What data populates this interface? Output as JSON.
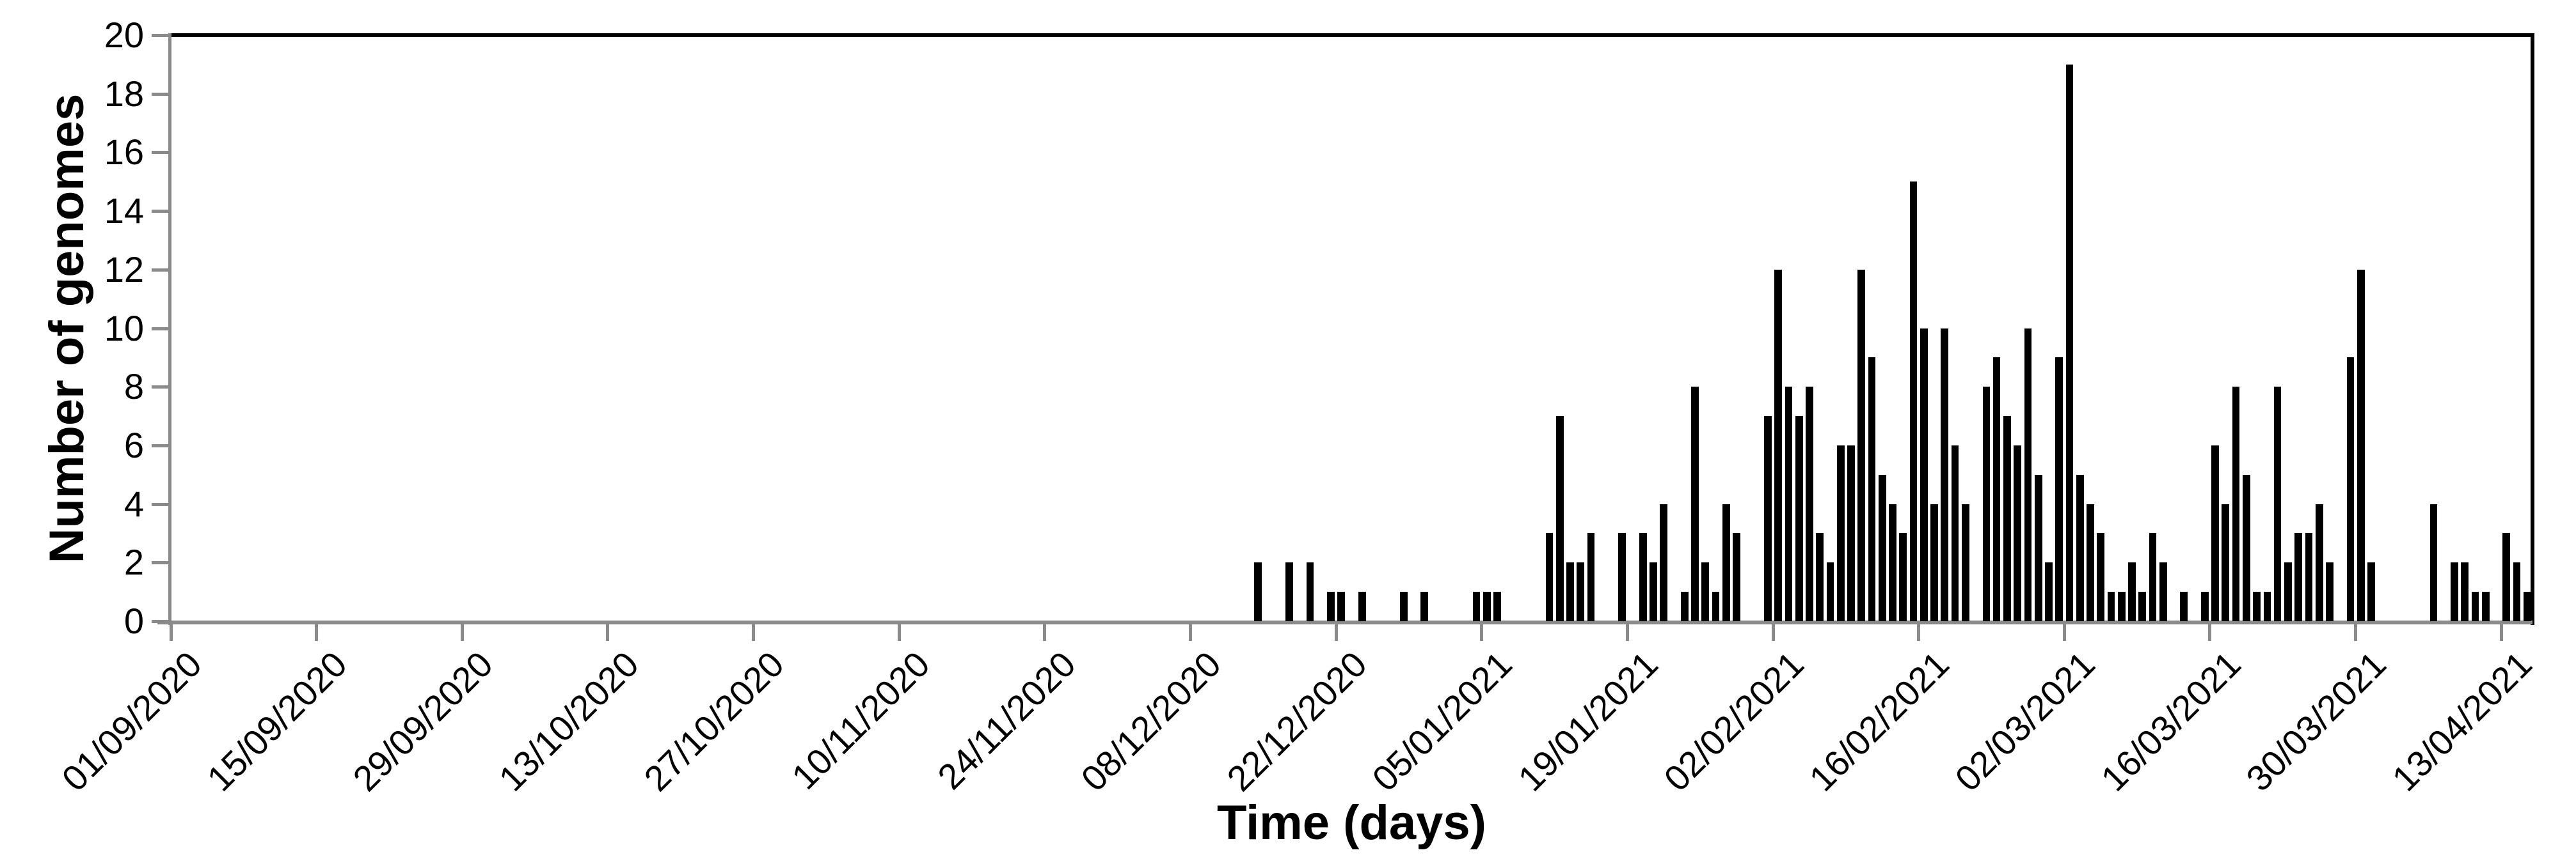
{
  "chart_data": {
    "type": "bar",
    "title": "",
    "xlabel": "Time (days)",
    "ylabel": "Number of genomes",
    "ylim": [
      0,
      20
    ],
    "y_tick_step": 2,
    "y_tick_values": [
      0,
      2,
      4,
      6,
      8,
      10,
      12,
      14,
      16,
      18,
      20
    ],
    "grid": "off",
    "legend": "none",
    "bar_color": "#000000",
    "axis_color": "#8a8a8a",
    "frame_color": "#000000",
    "n_slots": 227,
    "x_start_date": "01/09/2020",
    "x_end_date": "15/04/2021",
    "x_ticks": [
      {
        "day": 0,
        "label": "01/09/2020"
      },
      {
        "day": 14,
        "label": "15/09/2020"
      },
      {
        "day": 28,
        "label": "29/09/2020"
      },
      {
        "day": 42,
        "label": "13/10/2020"
      },
      {
        "day": 56,
        "label": "27/10/2020"
      },
      {
        "day": 70,
        "label": "10/11/2020"
      },
      {
        "day": 84,
        "label": "24/11/2020"
      },
      {
        "day": 98,
        "label": "08/12/2020"
      },
      {
        "day": 112,
        "label": "22/12/2020"
      },
      {
        "day": 126,
        "label": "05/01/2021"
      },
      {
        "day": 140,
        "label": "19/01/2021"
      },
      {
        "day": 154,
        "label": "02/02/2021"
      },
      {
        "day": 168,
        "label": "16/02/2021"
      },
      {
        "day": 182,
        "label": "02/03/2021"
      },
      {
        "day": 196,
        "label": "16/03/2021"
      },
      {
        "day": 210,
        "label": "30/03/2021"
      },
      {
        "day": 224,
        "label": "13/04/2021"
      }
    ],
    "points": [
      {
        "day": 104,
        "date": "14/12/2020",
        "value": 2
      },
      {
        "day": 107,
        "date": "17/12/2020",
        "value": 2
      },
      {
        "day": 109,
        "date": "19/12/2020",
        "value": 2
      },
      {
        "day": 111,
        "date": "21/12/2020",
        "value": 1
      },
      {
        "day": 112,
        "date": "22/12/2020",
        "value": 1
      },
      {
        "day": 114,
        "date": "24/12/2020",
        "value": 1
      },
      {
        "day": 118,
        "date": "28/12/2020",
        "value": 1
      },
      {
        "day": 120,
        "date": "30/12/2020",
        "value": 1
      },
      {
        "day": 125,
        "date": "04/01/2021",
        "value": 1
      },
      {
        "day": 126,
        "date": "05/01/2021",
        "value": 1
      },
      {
        "day": 127,
        "date": "06/01/2021",
        "value": 1
      },
      {
        "day": 132,
        "date": "11/01/2021",
        "value": 3
      },
      {
        "day": 133,
        "date": "12/01/2021",
        "value": 7
      },
      {
        "day": 134,
        "date": "13/01/2021",
        "value": 2
      },
      {
        "day": 135,
        "date": "14/01/2021",
        "value": 2
      },
      {
        "day": 136,
        "date": "15/01/2021",
        "value": 3
      },
      {
        "day": 139,
        "date": "18/01/2021",
        "value": 3
      },
      {
        "day": 141,
        "date": "20/01/2021",
        "value": 3
      },
      {
        "day": 142,
        "date": "21/01/2021",
        "value": 2
      },
      {
        "day": 143,
        "date": "22/01/2021",
        "value": 4
      },
      {
        "day": 145,
        "date": "24/01/2021",
        "value": 1
      },
      {
        "day": 146,
        "date": "25/01/2021",
        "value": 8
      },
      {
        "day": 147,
        "date": "26/01/2021",
        "value": 2
      },
      {
        "day": 148,
        "date": "27/01/2021",
        "value": 1
      },
      {
        "day": 149,
        "date": "28/01/2021",
        "value": 4
      },
      {
        "day": 150,
        "date": "29/01/2021",
        "value": 3
      },
      {
        "day": 153,
        "date": "01/02/2021",
        "value": 7
      },
      {
        "day": 154,
        "date": "02/02/2021",
        "value": 12
      },
      {
        "day": 155,
        "date": "03/02/2021",
        "value": 8
      },
      {
        "day": 156,
        "date": "04/02/2021",
        "value": 7
      },
      {
        "day": 157,
        "date": "05/02/2021",
        "value": 8
      },
      {
        "day": 158,
        "date": "06/02/2021",
        "value": 3
      },
      {
        "day": 159,
        "date": "07/02/2021",
        "value": 2
      },
      {
        "day": 160,
        "date": "08/02/2021",
        "value": 6
      },
      {
        "day": 161,
        "date": "09/02/2021",
        "value": 6
      },
      {
        "day": 162,
        "date": "10/02/2021",
        "value": 12
      },
      {
        "day": 163,
        "date": "11/02/2021",
        "value": 9
      },
      {
        "day": 164,
        "date": "12/02/2021",
        "value": 5
      },
      {
        "day": 165,
        "date": "13/02/2021",
        "value": 4
      },
      {
        "day": 166,
        "date": "14/02/2021",
        "value": 3
      },
      {
        "day": 167,
        "date": "15/02/2021",
        "value": 15
      },
      {
        "day": 168,
        "date": "16/02/2021",
        "value": 10
      },
      {
        "day": 169,
        "date": "17/02/2021",
        "value": 4
      },
      {
        "day": 170,
        "date": "18/02/2021",
        "value": 10
      },
      {
        "day": 171,
        "date": "19/02/2021",
        "value": 6
      },
      {
        "day": 172,
        "date": "20/02/2021",
        "value": 4
      },
      {
        "day": 174,
        "date": "22/02/2021",
        "value": 8
      },
      {
        "day": 175,
        "date": "23/02/2021",
        "value": 9
      },
      {
        "day": 176,
        "date": "24/02/2021",
        "value": 7
      },
      {
        "day": 177,
        "date": "25/02/2021",
        "value": 6
      },
      {
        "day": 178,
        "date": "26/02/2021",
        "value": 10
      },
      {
        "day": 179,
        "date": "27/02/2021",
        "value": 5
      },
      {
        "day": 180,
        "date": "28/02/2021",
        "value": 2
      },
      {
        "day": 181,
        "date": "01/03/2021",
        "value": 9
      },
      {
        "day": 182,
        "date": "02/03/2021",
        "value": 19
      },
      {
        "day": 183,
        "date": "03/03/2021",
        "value": 5
      },
      {
        "day": 184,
        "date": "04/03/2021",
        "value": 4
      },
      {
        "day": 185,
        "date": "05/03/2021",
        "value": 3
      },
      {
        "day": 186,
        "date": "06/03/2021",
        "value": 1
      },
      {
        "day": 187,
        "date": "07/03/2021",
        "value": 1
      },
      {
        "day": 188,
        "date": "08/03/2021",
        "value": 2
      },
      {
        "day": 189,
        "date": "09/03/2021",
        "value": 1
      },
      {
        "day": 190,
        "date": "10/03/2021",
        "value": 3
      },
      {
        "day": 191,
        "date": "11/03/2021",
        "value": 2
      },
      {
        "day": 193,
        "date": "13/03/2021",
        "value": 1
      },
      {
        "day": 195,
        "date": "15/03/2021",
        "value": 1
      },
      {
        "day": 196,
        "date": "16/03/2021",
        "value": 6
      },
      {
        "day": 197,
        "date": "17/03/2021",
        "value": 4
      },
      {
        "day": 198,
        "date": "18/03/2021",
        "value": 8
      },
      {
        "day": 199,
        "date": "19/03/2021",
        "value": 5
      },
      {
        "day": 200,
        "date": "20/03/2021",
        "value": 1
      },
      {
        "day": 201,
        "date": "21/03/2021",
        "value": 1
      },
      {
        "day": 202,
        "date": "22/03/2021",
        "value": 8
      },
      {
        "day": 203,
        "date": "23/03/2021",
        "value": 2
      },
      {
        "day": 204,
        "date": "24/03/2021",
        "value": 3
      },
      {
        "day": 205,
        "date": "25/03/2021",
        "value": 3
      },
      {
        "day": 206,
        "date": "26/03/2021",
        "value": 4
      },
      {
        "day": 207,
        "date": "27/03/2021",
        "value": 2
      },
      {
        "day": 209,
        "date": "29/03/2021",
        "value": 9
      },
      {
        "day": 210,
        "date": "30/03/2021",
        "value": 12
      },
      {
        "day": 211,
        "date": "31/03/2021",
        "value": 2
      },
      {
        "day": 217,
        "date": "06/04/2021",
        "value": 4
      },
      {
        "day": 219,
        "date": "08/04/2021",
        "value": 2
      },
      {
        "day": 220,
        "date": "09/04/2021",
        "value": 2
      },
      {
        "day": 221,
        "date": "10/04/2021",
        "value": 1
      },
      {
        "day": 222,
        "date": "11/04/2021",
        "value": 1
      },
      {
        "day": 224,
        "date": "13/04/2021",
        "value": 3
      },
      {
        "day": 225,
        "date": "14/04/2021",
        "value": 2
      },
      {
        "day": 226,
        "date": "15/04/2021",
        "value": 1
      }
    ]
  }
}
